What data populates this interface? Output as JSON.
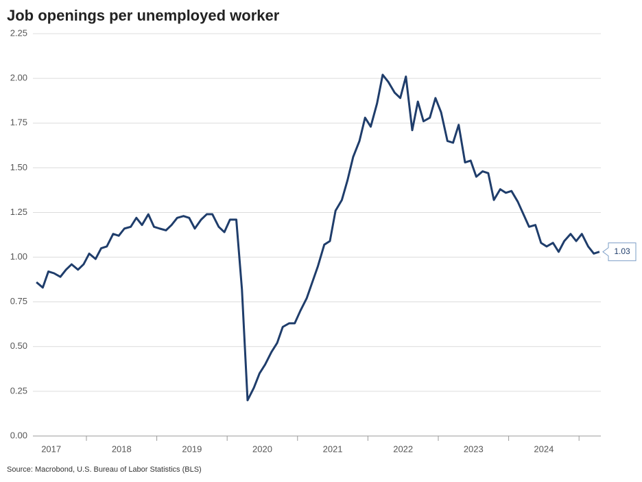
{
  "chart_data": {
    "type": "line",
    "title": "Job openings per unemployed worker",
    "source": "Source: Macrobond, U.S. Bureau of Labor Statistics (BLS)",
    "last_value_label": "1.03",
    "color": "#1f3d6b",
    "grid": true,
    "ylim": [
      0,
      2.25
    ],
    "yticks": [
      {
        "value": 0,
        "label": "0.00"
      },
      {
        "value": 0.25,
        "label": "0.25"
      },
      {
        "value": 0.5,
        "label": "0.50"
      },
      {
        "value": 0.75,
        "label": "0.75"
      },
      {
        "value": 1,
        "label": "1.00"
      },
      {
        "value": 1.25,
        "label": "1.25"
      },
      {
        "value": 1.5,
        "label": "1.50"
      },
      {
        "value": 1.75,
        "label": "1.75"
      },
      {
        "value": 2,
        "label": "2.00"
      },
      {
        "value": 2.25,
        "label": "2.25"
      }
    ],
    "xlim": [
      2017.24,
      2025.31
    ],
    "xticks": [
      2018,
      2019,
      2020,
      2021,
      2022,
      2023,
      2024,
      2025
    ],
    "xtick_labels": [
      {
        "value": 2017.5,
        "label": "2017"
      },
      {
        "value": 2018.5,
        "label": "2018"
      },
      {
        "value": 2019.5,
        "label": "2019"
      },
      {
        "value": 2020.5,
        "label": "2020"
      },
      {
        "value": 2021.5,
        "label": "2021"
      },
      {
        "value": 2022.5,
        "label": "2022"
      },
      {
        "value": 2023.5,
        "label": "2023"
      },
      {
        "value": 2024.5,
        "label": "2024"
      }
    ],
    "x": [
      2017.29,
      2017.38,
      2017.46,
      2017.54,
      2017.63,
      2017.71,
      2017.79,
      2017.88,
      2017.96,
      2018.04,
      2018.13,
      2018.21,
      2018.29,
      2018.38,
      2018.46,
      2018.54,
      2018.63,
      2018.71,
      2018.79,
      2018.88,
      2018.96,
      2019.04,
      2019.13,
      2019.21,
      2019.29,
      2019.38,
      2019.46,
      2019.54,
      2019.63,
      2019.71,
      2019.79,
      2019.88,
      2019.96,
      2020.04,
      2020.13,
      2020.21,
      2020.29,
      2020.38,
      2020.46,
      2020.54,
      2020.63,
      2020.71,
      2020.79,
      2020.88,
      2020.96,
      2021.04,
      2021.13,
      2021.21,
      2021.29,
      2021.38,
      2021.46,
      2021.54,
      2021.63,
      2021.71,
      2021.79,
      2021.88,
      2021.96,
      2022.04,
      2022.13,
      2022.21,
      2022.29,
      2022.38,
      2022.46,
      2022.54,
      2022.63,
      2022.71,
      2022.79,
      2022.88,
      2022.96,
      2023.04,
      2023.13,
      2023.21,
      2023.29,
      2023.38,
      2023.46,
      2023.54,
      2023.63,
      2023.71,
      2023.79,
      2023.88,
      2023.96,
      2024.04,
      2024.13,
      2024.21,
      2024.29,
      2024.38,
      2024.46,
      2024.54,
      2024.63,
      2024.71,
      2024.79,
      2024.88,
      2024.96,
      2025.04,
      2025.13,
      2025.21,
      2025.29
    ],
    "values": [
      0.86,
      0.83,
      0.92,
      0.91,
      0.89,
      0.93,
      0.96,
      0.93,
      0.96,
      1.02,
      0.99,
      1.05,
      1.06,
      1.13,
      1.12,
      1.16,
      1.17,
      1.22,
      1.18,
      1.24,
      1.17,
      1.16,
      1.15,
      1.18,
      1.22,
      1.23,
      1.22,
      1.16,
      1.21,
      1.24,
      1.24,
      1.17,
      1.14,
      1.21,
      1.21,
      0.82,
      0.2,
      0.27,
      0.35,
      0.4,
      0.47,
      0.52,
      0.61,
      0.63,
      0.63,
      0.7,
      0.77,
      0.86,
      0.95,
      1.07,
      1.09,
      1.26,
      1.32,
      1.43,
      1.56,
      1.65,
      1.78,
      1.73,
      1.86,
      2.02,
      1.98,
      1.92,
      1.89,
      2.01,
      1.71,
      1.87,
      1.76,
      1.78,
      1.89,
      1.81,
      1.65,
      1.64,
      1.74,
      1.53,
      1.54,
      1.45,
      1.48,
      1.47,
      1.32,
      1.38,
      1.36,
      1.37,
      1.31,
      1.24,
      1.17,
      1.18,
      1.08,
      1.06,
      1.08,
      1.03,
      1.09,
      1.13,
      1.09,
      1.13,
      1.06,
      1.02,
      1.03
    ]
  }
}
